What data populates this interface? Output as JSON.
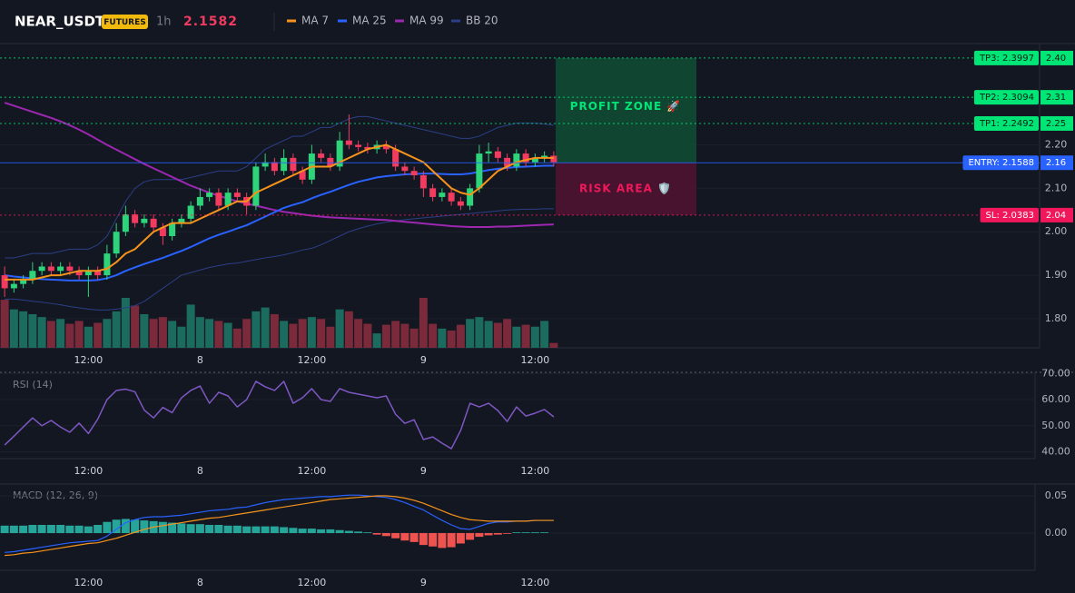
{
  "chart_data": [
    {
      "type": "candlestick",
      "title": "NEAR_USDT",
      "badge": "FUTURES",
      "interval": "1h",
      "last_price": 2.1582,
      "categories": [
        null,
        null,
        null,
        null,
        null,
        null,
        null,
        null,
        null,
        "12:00",
        null,
        null,
        null,
        null,
        null,
        null,
        null,
        null,
        null,
        null,
        null,
        "8",
        null,
        null,
        null,
        null,
        null,
        null,
        null,
        null,
        null,
        null,
        null,
        "12:00",
        null,
        null,
        null,
        null,
        null,
        null,
        null,
        null,
        null,
        null,
        null,
        "9",
        null,
        null,
        null,
        null,
        null,
        null,
        null,
        null,
        null,
        null,
        null,
        "12:00",
        null,
        null
      ],
      "open": [
        1.9,
        1.87,
        1.88,
        1.89,
        1.91,
        1.92,
        1.91,
        1.92,
        1.91,
        1.9,
        1.91,
        1.9,
        1.95,
        2.0,
        2.04,
        2.02,
        2.03,
        2.01,
        1.99,
        2.02,
        2.03,
        2.06,
        2.08,
        2.09,
        2.06,
        2.09,
        2.08,
        2.06,
        2.15,
        2.16,
        2.14,
        2.17,
        2.14,
        2.12,
        2.18,
        2.17,
        2.15,
        2.21,
        2.2,
        2.195,
        2.19,
        2.2,
        2.19,
        2.15,
        2.14,
        2.13,
        2.1,
        2.08,
        2.09,
        2.07,
        2.06,
        2.1,
        2.18,
        2.185,
        2.17,
        2.15,
        2.18,
        2.16,
        2.17,
        2.175
      ],
      "high": [
        1.92,
        1.89,
        1.9,
        1.93,
        1.93,
        1.93,
        1.93,
        1.93,
        1.92,
        1.92,
        1.92,
        1.97,
        2.02,
        2.06,
        2.05,
        2.04,
        2.04,
        2.02,
        2.03,
        2.04,
        2.07,
        2.1,
        2.1,
        2.1,
        2.1,
        2.1,
        2.09,
        2.16,
        2.18,
        2.17,
        2.19,
        2.18,
        2.15,
        2.2,
        2.19,
        2.18,
        2.23,
        2.27,
        2.21,
        2.205,
        2.21,
        2.21,
        2.2,
        2.16,
        2.15,
        2.14,
        2.11,
        2.1,
        2.1,
        2.08,
        2.11,
        2.2,
        2.205,
        2.195,
        2.18,
        2.19,
        2.19,
        2.18,
        2.185,
        2.185
      ],
      "low": [
        1.85,
        1.86,
        1.87,
        1.88,
        1.9,
        1.9,
        1.9,
        1.9,
        1.89,
        1.85,
        1.89,
        1.89,
        1.94,
        1.99,
        2.01,
        2.01,
        2.0,
        1.97,
        1.98,
        2.01,
        2.02,
        2.05,
        2.07,
        2.05,
        2.05,
        2.07,
        2.04,
        2.05,
        2.14,
        2.13,
        2.13,
        2.13,
        2.11,
        2.11,
        2.16,
        2.14,
        2.14,
        2.19,
        2.185,
        2.18,
        2.18,
        2.18,
        2.14,
        2.13,
        2.12,
        2.08,
        2.07,
        2.07,
        2.06,
        2.05,
        2.05,
        2.09,
        2.16,
        2.16,
        2.14,
        2.14,
        2.15,
        2.15,
        2.16,
        2.15
      ],
      "close": [
        1.87,
        1.88,
        1.89,
        1.91,
        1.92,
        1.91,
        1.92,
        1.91,
        1.9,
        1.91,
        1.9,
        1.95,
        2.0,
        2.04,
        2.02,
        2.03,
        2.01,
        1.99,
        2.02,
        2.03,
        2.06,
        2.08,
        2.09,
        2.06,
        2.09,
        2.08,
        2.06,
        2.15,
        2.16,
        2.14,
        2.17,
        2.14,
        2.12,
        2.18,
        2.17,
        2.15,
        2.21,
        2.2,
        2.195,
        2.19,
        2.2,
        2.19,
        2.15,
        2.14,
        2.13,
        2.1,
        2.08,
        2.09,
        2.07,
        2.06,
        2.1,
        2.18,
        2.185,
        2.17,
        2.15,
        2.18,
        2.16,
        2.17,
        2.175,
        2.16
      ],
      "up_color": "#2ed47a",
      "down_color": "#f23b5f",
      "volume": [
        50,
        40,
        38,
        35,
        32,
        28,
        30,
        25,
        28,
        22,
        26,
        30,
        38,
        52,
        44,
        35,
        30,
        32,
        28,
        22,
        45,
        32,
        30,
        28,
        26,
        20,
        30,
        38,
        42,
        35,
        28,
        25,
        30,
        32,
        30,
        22,
        40,
        38,
        30,
        25,
        15,
        24,
        28,
        25,
        20,
        52,
        25,
        20,
        18,
        24,
        30,
        32,
        28,
        26,
        30,
        22,
        24,
        22,
        28,
        5
      ],
      "volume_up_color": "#1c6b5f",
      "volume_down_color": "#7a2a3a",
      "series": [
        {
          "name": "MA 7",
          "color": "#f7931a",
          "values": [
            1.89,
            1.89,
            1.89,
            1.89,
            1.895,
            1.9,
            1.9,
            1.905,
            1.91,
            1.91,
            1.91,
            1.915,
            1.93,
            1.95,
            1.96,
            1.98,
            2.0,
            2.01,
            2.02,
            2.02,
            2.02,
            2.03,
            2.04,
            2.05,
            2.06,
            2.07,
            2.07,
            2.09,
            2.1,
            2.11,
            2.12,
            2.13,
            2.14,
            2.15,
            2.15,
            2.15,
            2.16,
            2.17,
            2.18,
            2.19,
            2.195,
            2.2,
            2.19,
            2.18,
            2.17,
            2.16,
            2.14,
            2.12,
            2.1,
            2.09,
            2.085,
            2.1,
            2.12,
            2.14,
            2.15,
            2.16,
            2.165,
            2.17,
            2.17,
            2.17
          ]
        },
        {
          "name": "MA 25",
          "color": "#2962ff",
          "values": [
            1.9,
            1.897,
            1.895,
            1.893,
            1.891,
            1.89,
            1.889,
            1.888,
            1.888,
            1.888,
            1.889,
            1.893,
            1.9,
            1.91,
            1.918,
            1.926,
            1.933,
            1.94,
            1.948,
            1.956,
            1.965,
            1.975,
            1.985,
            1.993,
            2.0,
            2.008,
            2.015,
            2.025,
            2.035,
            2.045,
            2.055,
            2.062,
            2.068,
            2.077,
            2.085,
            2.092,
            2.1,
            2.108,
            2.115,
            2.12,
            2.125,
            2.128,
            2.13,
            2.132,
            2.133,
            2.134,
            2.134,
            2.133,
            2.132,
            2.132,
            2.134,
            2.138,
            2.142,
            2.145,
            2.147,
            2.149,
            2.15,
            2.151,
            2.152,
            2.152
          ]
        },
        {
          "name": "MA 99",
          "color": "#9c27b0",
          "values": [
            2.297,
            2.29,
            2.283,
            2.276,
            2.269,
            2.262,
            2.254,
            2.245,
            2.235,
            2.224,
            2.212,
            2.2,
            2.189,
            2.178,
            2.167,
            2.156,
            2.146,
            2.136,
            2.126,
            2.116,
            2.106,
            2.098,
            2.09,
            2.083,
            2.076,
            2.07,
            2.065,
            2.06,
            2.055,
            2.05,
            2.046,
            2.043,
            2.04,
            2.037,
            2.035,
            2.033,
            2.032,
            2.031,
            2.03,
            2.029,
            2.028,
            2.027,
            2.025,
            2.023,
            2.021,
            2.019,
            2.017,
            2.015,
            2.013,
            2.012,
            2.011,
            2.011,
            2.011,
            2.012,
            2.012,
            2.013,
            2.014,
            2.015,
            2.016,
            2.017
          ]
        },
        {
          "name": "BB 20",
          "color": "#2b3f86",
          "upper": [
            1.94,
            1.94,
            1.945,
            1.95,
            1.95,
            1.95,
            1.955,
            1.96,
            1.96,
            1.96,
            1.97,
            1.99,
            2.03,
            2.07,
            2.1,
            2.115,
            2.12,
            2.12,
            2.12,
            2.12,
            2.125,
            2.13,
            2.135,
            2.14,
            2.14,
            2.14,
            2.15,
            2.17,
            2.19,
            2.2,
            2.21,
            2.22,
            2.22,
            2.23,
            2.24,
            2.24,
            2.25,
            2.26,
            2.265,
            2.265,
            2.26,
            2.255,
            2.25,
            2.245,
            2.24,
            2.235,
            2.23,
            2.225,
            2.22,
            2.215,
            2.215,
            2.22,
            2.23,
            2.24,
            2.245,
            2.25,
            2.25,
            2.25,
            2.248,
            2.245
          ],
          "lower": [
            1.845,
            1.845,
            1.843,
            1.84,
            1.838,
            1.835,
            1.832,
            1.828,
            1.825,
            1.822,
            1.82,
            1.82,
            1.822,
            1.825,
            1.83,
            1.84,
            1.855,
            1.87,
            1.885,
            1.9,
            1.906,
            1.912,
            1.918,
            1.922,
            1.926,
            1.928,
            1.932,
            1.936,
            1.94,
            1.943,
            1.947,
            1.952,
            1.958,
            1.962,
            1.97,
            1.98,
            1.99,
            2.0,
            2.007,
            2.013,
            2.018,
            2.022,
            2.025,
            2.028,
            2.03,
            2.032,
            2.034,
            2.036,
            2.038,
            2.04,
            2.042,
            2.044,
            2.046,
            2.048,
            2.05,
            2.051,
            2.052,
            2.052,
            2.053,
            2.053
          ]
        }
      ],
      "ylim": [
        1.733,
        2.433
      ],
      "yticks": [
        {
          "value": 1.8,
          "label": "1.80"
        },
        {
          "value": 1.9,
          "label": "1.90"
        },
        {
          "value": 2.0,
          "label": "2.00"
        },
        {
          "value": 2.1,
          "label": "2.10"
        },
        {
          "value": 2.2,
          "label": "2.20"
        }
      ],
      "grid": true,
      "levels": [
        {
          "label": "TP3: 2.3997",
          "value": 2.3997,
          "axis_label": "2.40",
          "color": "#00e676",
          "text_color": "#0b1f14",
          "style": "dotted"
        },
        {
          "label": "TP2: 2.3094",
          "value": 2.3094,
          "axis_label": "2.31",
          "color": "#00e676",
          "text_color": "#0b1f14",
          "style": "dotted"
        },
        {
          "label": "TP1: 2.2492",
          "value": 2.2492,
          "axis_label": "2.25",
          "color": "#00e676",
          "text_color": "#0b1f14",
          "style": "dotted"
        },
        {
          "label": "ENTRY: 2.1588",
          "value": 2.1588,
          "axis_label": "2.16",
          "color": "#2962ff",
          "text_color": "#ffffff",
          "style": "solid"
        },
        {
          "label": "SL: 2.0383",
          "value": 2.0383,
          "axis_label": "2.04",
          "color": "#f0185a",
          "text_color": "#ffffff",
          "style": "dotted"
        }
      ],
      "zones": [
        {
          "label": "PROFIT ZONE 🚀",
          "color": "#0f4a33",
          "text_color": "#00e676"
        },
        {
          "label": "RISK AREA 🛡️",
          "color": "#4f1330",
          "text_color": "#f0185a"
        }
      ]
    },
    {
      "type": "line",
      "title": "RSI (14)",
      "color": "#7e57c2",
      "values": [
        42.6,
        46,
        49.5,
        53,
        50,
        52,
        49.5,
        47.5,
        51,
        47,
        52.5,
        60,
        63.5,
        64,
        63,
        56,
        53,
        57,
        55,
        60.7,
        63.5,
        65.2,
        58.6,
        62.8,
        61.4,
        57.2,
        60,
        67,
        64.9,
        63.5,
        67,
        58.6,
        60.7,
        64.2,
        60,
        59.3,
        64.2,
        62.8,
        62.1,
        61.4,
        60.7,
        61.4,
        54.4,
        50.9,
        52.3,
        44.7,
        45.7,
        43.3,
        41.2,
        48.2,
        58.6,
        57.2,
        58.6,
        55.8,
        51.6,
        57.2,
        53.7,
        54.8,
        56.2,
        53.4
      ],
      "ylim": [
        37.4,
        70.45
      ],
      "yticks": [
        {
          "value": 40,
          "label": "40.00"
        },
        {
          "value": 50,
          "label": "50.00"
        },
        {
          "value": 60,
          "label": "60.00"
        },
        {
          "value": 70,
          "label": "70.00"
        }
      ]
    },
    {
      "type": "macd",
      "title": "MACD (12, 26, 9)",
      "series": [
        {
          "color": "#2962ff",
          "values": [
            -0.026,
            -0.025,
            -0.023,
            -0.021,
            -0.019,
            -0.017,
            -0.015,
            -0.013,
            -0.012,
            -0.011,
            -0.01,
            -0.004,
            0.005,
            0.014,
            0.018,
            0.021,
            0.022,
            0.022,
            0.023,
            0.024,
            0.026,
            0.028,
            0.03,
            0.031,
            0.032,
            0.034,
            0.035,
            0.038,
            0.041,
            0.043,
            0.045,
            0.046,
            0.047,
            0.048,
            0.049,
            0.049,
            0.05,
            0.051,
            0.051,
            0.05,
            0.049,
            0.048,
            0.045,
            0.041,
            0.036,
            0.031,
            0.024,
            0.017,
            0.011,
            0.006,
            0.005,
            0.009,
            0.013,
            0.015,
            0.015,
            0.016,
            0.016,
            0.017,
            0.017,
            0.017
          ]
        },
        {
          "color": "#f7931a",
          "values": [
            -0.03,
            -0.029,
            -0.027,
            -0.026,
            -0.024,
            -0.022,
            -0.02,
            -0.018,
            -0.016,
            -0.014,
            -0.013,
            -0.01,
            -0.007,
            -0.003,
            0.001,
            0.005,
            0.008,
            0.01,
            0.012,
            0.014,
            0.016,
            0.018,
            0.02,
            0.021,
            0.023,
            0.025,
            0.027,
            0.029,
            0.031,
            0.033,
            0.035,
            0.037,
            0.039,
            0.041,
            0.043,
            0.045,
            0.046,
            0.047,
            0.048,
            0.049,
            0.05,
            0.05,
            0.049,
            0.047,
            0.044,
            0.04,
            0.035,
            0.03,
            0.025,
            0.021,
            0.018,
            0.017,
            0.016,
            0.016,
            0.016,
            0.016,
            0.016,
            0.017,
            0.017,
            0.017
          ]
        }
      ],
      "histogram": [
        0.01,
        0.01,
        0.01,
        0.011,
        0.011,
        0.011,
        0.011,
        0.01,
        0.01,
        0.009,
        0.011,
        0.015,
        0.018,
        0.019,
        0.018,
        0.017,
        0.016,
        0.015,
        0.014,
        0.013,
        0.012,
        0.012,
        0.011,
        0.011,
        0.01,
        0.01,
        0.009,
        0.009,
        0.009,
        0.009,
        0.008,
        0.007,
        0.006,
        0.006,
        0.005,
        0.005,
        0.004,
        0.003,
        0.002,
        0.001,
        -0.002,
        -0.004,
        -0.007,
        -0.01,
        -0.012,
        -0.016,
        -0.018,
        -0.02,
        -0.019,
        -0.014,
        -0.009,
        -0.005,
        -0.003,
        -0.002,
        -0.001,
        0.001,
        0.001,
        0.001,
        0.001,
        0.0
      ],
      "hist_up_color": "#26a69a",
      "hist_down_color": "#ef5350",
      "ylim": [
        -0.05,
        0.0659
      ],
      "yticks": [
        {
          "value": 0,
          "label": "0.00"
        },
        {
          "value": 0.05,
          "label": "0.05"
        }
      ]
    }
  ]
}
